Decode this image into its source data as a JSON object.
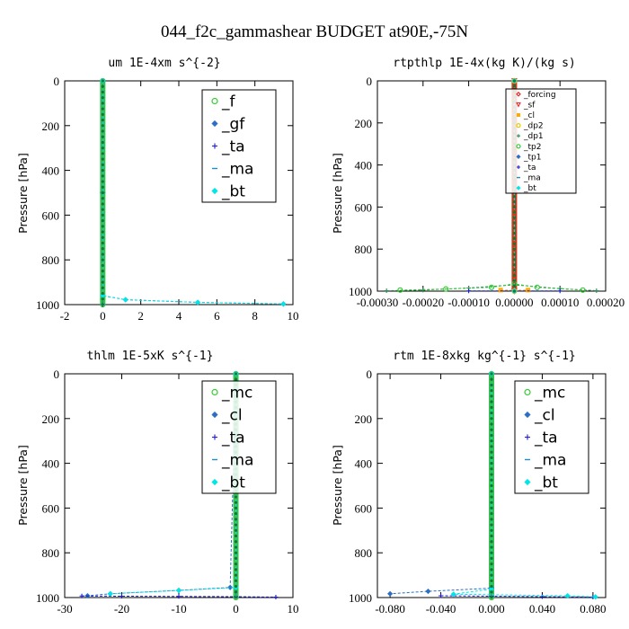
{
  "figure": {
    "title": "044_f2c_gammashear  BUDGET at90E,-75N"
  },
  "chart_data": [
    {
      "type": "line",
      "title": "um  1E-4xm s^{-2}",
      "ylabel": "Pressure [hPa]",
      "xlim": [
        -2,
        10
      ],
      "ylim": [
        1000,
        0
      ],
      "xticks": [
        -2,
        0,
        2,
        4,
        6,
        8,
        10
      ],
      "xtick_labels": [
        "-2",
        "0",
        "2",
        "4",
        "6",
        "8",
        "10"
      ],
      "yticks": [
        0,
        200,
        400,
        600,
        800,
        1000
      ],
      "ytick_labels": [
        "0",
        "200",
        "400",
        "600",
        "800",
        "1000"
      ],
      "grid": false,
      "legend": {
        "placement": "top-right",
        "font_size": "large"
      },
      "series": [
        {
          "name": "_f",
          "color": "#33cc33",
          "marker": "circle-open",
          "x": [
            0,
            0,
            0,
            0
          ],
          "y": [
            0,
            500,
            975,
            1000
          ]
        },
        {
          "name": "_gf",
          "color": "#2a6fc4",
          "marker": "diamond-filled",
          "x": [
            0,
            0,
            1.2,
            5,
            9.5
          ],
          "y": [
            0,
            960,
            978,
            990,
            997
          ]
        },
        {
          "name": "_ta",
          "color": "#1a1acc",
          "marker": "plus",
          "x": [
            0,
            0,
            0
          ],
          "y": [
            0,
            500,
            1000
          ]
        },
        {
          "name": "_ma",
          "color": "#1f8fcc",
          "marker": "dash",
          "x": [
            0,
            0,
            0
          ],
          "y": [
            0,
            500,
            1000
          ]
        },
        {
          "name": "_bt",
          "color": "#00e5e5",
          "marker": "diamond-filled",
          "x": [
            0,
            0,
            1.2,
            5,
            9.5
          ],
          "y": [
            0,
            960,
            978,
            990,
            997
          ]
        }
      ],
      "profile": {
        "x": 0,
        "color": "#22bb44"
      }
    },
    {
      "type": "line",
      "title": "rtpthlp  1E-4x(kg K)/(kg s)",
      "ylabel": "Pressure [hPa]",
      "xlim": [
        -0.0003,
        0.0002
      ],
      "ylim": [
        1000,
        0
      ],
      "xticks": [
        -0.0003,
        -0.0002,
        -0.0001,
        0,
        0.0001,
        0.0002
      ],
      "xtick_labels": [
        "-0.00030",
        "-0.00020",
        "-0.00010",
        "0.00000",
        "0.00010",
        "0.00020"
      ],
      "yticks": [
        0,
        200,
        400,
        600,
        800,
        1000
      ],
      "ytick_labels": [
        "0",
        "200",
        "400",
        "600",
        "800",
        "1000"
      ],
      "grid": false,
      "legend": {
        "placement": "top-right",
        "font_size": "small"
      },
      "series": [
        {
          "name": "_forcing",
          "color": "#dd2222",
          "marker": "diamond-open",
          "x": [
            0,
            0,
            0
          ],
          "y": [
            0,
            500,
            1000
          ]
        },
        {
          "name": "_sf",
          "color": "#dd3333",
          "marker": "triangle-open",
          "x": [
            0,
            0,
            0
          ],
          "y": [
            0,
            500,
            1000
          ]
        },
        {
          "name": "_cl",
          "color": "#ffaa00",
          "marker": "square-filled",
          "x": [
            -3e-05,
            3e-05
          ],
          "y": [
            995,
            995
          ]
        },
        {
          "name": "_dp2",
          "color": "#e8c800",
          "marker": "circle-open",
          "x": [
            0,
            0
          ],
          "y": [
            0,
            1000
          ]
        },
        {
          "name": "_dp1",
          "color": "#2e8b57",
          "marker": "plus",
          "x": [
            -0.00028,
            -0.0002,
            -0.0001,
            0,
            0.0001,
            0.00018
          ],
          "y": [
            998,
            995,
            985,
            970,
            988,
            998
          ]
        },
        {
          "name": "_tp2",
          "color": "#33cc33",
          "marker": "circle-open",
          "x": [
            -0.00025,
            -0.00015,
            -5e-05,
            0,
            5e-05,
            0.00015
          ],
          "y": [
            995,
            990,
            982,
            965,
            982,
            995
          ]
        },
        {
          "name": "_tp1",
          "color": "#2a6fc4",
          "marker": "diamond-filled",
          "x": [
            0,
            0
          ],
          "y": [
            0,
            1000
          ]
        },
        {
          "name": "_ta",
          "color": "#1a1acc",
          "marker": "plus",
          "x": [
            -0.0001,
            0,
            0.0001
          ],
          "y": [
            999,
            999,
            999
          ]
        },
        {
          "name": "_ma",
          "color": "#1f8fcc",
          "marker": "dash",
          "x": [
            0,
            0
          ],
          "y": [
            0,
            1000
          ]
        },
        {
          "name": "_bt",
          "color": "#00e5e5",
          "marker": "diamond-filled",
          "x": [
            0,
            0
          ],
          "y": [
            0,
            1000
          ]
        }
      ],
      "profile": {
        "x": 0,
        "color": "#cc2200"
      }
    },
    {
      "type": "line",
      "title": "thlm  1E-5xK s^{-1}",
      "ylabel": "Pressure [hPa]",
      "xlim": [
        -30,
        10
      ],
      "ylim": [
        1000,
        0
      ],
      "xticks": [
        -30,
        -20,
        -10,
        0,
        10
      ],
      "xtick_labels": [
        "-30",
        "-20",
        "-10",
        "0",
        "10"
      ],
      "yticks": [
        0,
        200,
        400,
        600,
        800,
        1000
      ],
      "ytick_labels": [
        "0",
        "200",
        "400",
        "600",
        "800",
        "1000"
      ],
      "grid": false,
      "legend": {
        "placement": "top-right",
        "font_size": "large"
      },
      "series": [
        {
          "name": "_mc",
          "color": "#33cc33",
          "marker": "circle-open",
          "x": [
            0,
            0,
            0
          ],
          "y": [
            0,
            500,
            1000
          ]
        },
        {
          "name": "_cl",
          "color": "#2a6fc4",
          "marker": "diamond-filled",
          "x": [
            0,
            -1,
            -10,
            -22,
            -26
          ],
          "y": [
            0,
            955,
            968,
            983,
            992
          ]
        },
        {
          "name": "_ta",
          "color": "#1a1acc",
          "marker": "plus",
          "x": [
            -27,
            -20,
            -10,
            0,
            7
          ],
          "y": [
            993,
            994,
            995,
            996,
            998
          ]
        },
        {
          "name": "_ma",
          "color": "#1f8fcc",
          "marker": "dash",
          "x": [
            0,
            0
          ],
          "y": [
            0,
            1000
          ]
        },
        {
          "name": "_bt",
          "color": "#00e5e5",
          "marker": "diamond-filled",
          "x": [
            0,
            0,
            -10,
            -22
          ],
          "y": [
            0,
            955,
            968,
            983
          ]
        }
      ],
      "profile": {
        "x": 0,
        "color": "#22bb44"
      }
    },
    {
      "type": "line",
      "title": "rtm  1E-8xkg kg^{-1} s^{-1}",
      "ylabel": "Pressure [hPa]",
      "xlim": [
        -0.09,
        0.09
      ],
      "ylim": [
        1000,
        0
      ],
      "xticks": [
        -0.08,
        -0.04,
        0,
        0.04,
        0.08
      ],
      "xtick_labels": [
        "-0.080",
        "-0.040",
        "0.000",
        "0.040",
        "0.080"
      ],
      "yticks": [
        0,
        200,
        400,
        600,
        800,
        1000
      ],
      "ytick_labels": [
        "0",
        "200",
        "400",
        "600",
        "800",
        "1000"
      ],
      "grid": false,
      "legend": {
        "placement": "top-right",
        "font_size": "large"
      },
      "series": [
        {
          "name": "_mc",
          "color": "#33cc33",
          "marker": "circle-open",
          "x": [
            0,
            0,
            0
          ],
          "y": [
            0,
            500,
            1000
          ]
        },
        {
          "name": "_cl",
          "color": "#2a6fc4",
          "marker": "diamond-filled",
          "x": [
            0,
            0,
            -0.05,
            -0.08
          ],
          "y": [
            0,
            958,
            972,
            983
          ]
        },
        {
          "name": "_ta",
          "color": "#1a1acc",
          "marker": "plus",
          "x": [
            -0.04,
            0,
            0.04,
            0.08
          ],
          "y": [
            992,
            994,
            996,
            998
          ]
        },
        {
          "name": "_ma",
          "color": "#1f8fcc",
          "marker": "dash",
          "x": [
            0,
            0
          ],
          "y": [
            0,
            1000
          ]
        },
        {
          "name": "_bt",
          "color": "#00e5e5",
          "marker": "diamond-filled",
          "x": [
            0,
            0,
            -0.03,
            0.06,
            0.082
          ],
          "y": [
            0,
            962,
            985,
            992,
            997
          ]
        }
      ],
      "profile": {
        "x": 0,
        "color": "#22bb44"
      }
    }
  ]
}
